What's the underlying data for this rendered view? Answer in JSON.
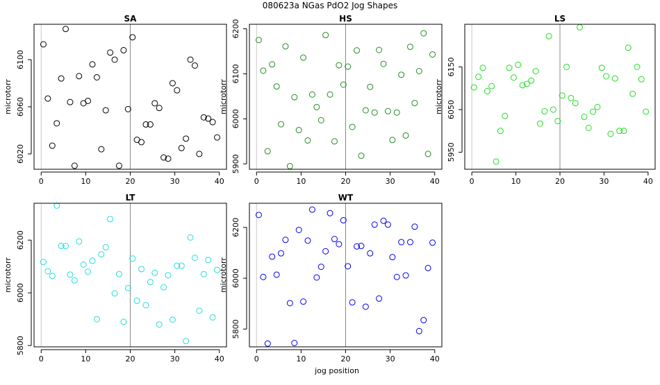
{
  "page": {
    "title": "080623a   NGas PdO2 Jog Shapes",
    "xlabel": "jog position"
  },
  "chart_data": [
    {
      "type": "scatter",
      "title": "SA",
      "ylabel": "microtorr",
      "color": "#000000",
      "vline_x": 20,
      "xlim": [
        -1.6,
        41.6
      ],
      "ylim": [
        6007,
        6130
      ],
      "xticks": [
        0,
        10,
        20,
        30,
        40
      ],
      "yticks": [
        6020,
        6060,
        6100
      ],
      "x": [
        0.5,
        1.5,
        2.5,
        3.5,
        4.5,
        5.5,
        6.5,
        7.5,
        8.5,
        9.5,
        10.5,
        11.5,
        12.5,
        13.5,
        14.5,
        15.5,
        16.5,
        17.5,
        18.5,
        19.5,
        20.5,
        21.5,
        22.5,
        23.5,
        24.5,
        25.5,
        26.5,
        27.5,
        28.5,
        29.5,
        30.5,
        31.5,
        32.5,
        33.5,
        34.5,
        35.5,
        36.5,
        37.5,
        38.5,
        39.5
      ],
      "y": [
        6113,
        6067,
        6027,
        6046,
        6084,
        6126,
        6064,
        6010,
        6086,
        6063,
        6065,
        6096,
        6085,
        6024,
        6057,
        6106,
        6100,
        6010,
        6108,
        6058,
        6119,
        6032,
        6030,
        6045,
        6045,
        6063,
        6059,
        6017,
        6016,
        6080,
        6074,
        6025,
        6033,
        6100,
        6095,
        6020,
        6051,
        6050,
        6047,
        6034
      ]
    },
    {
      "type": "scatter",
      "title": "HS",
      "ylabel": "microtorr",
      "color": "#228B22",
      "vline_x": 20,
      "xlim": [
        -1.6,
        41.6
      ],
      "ylim": [
        5888,
        6210
      ],
      "xticks": [
        0,
        10,
        20,
        30,
        40
      ],
      "yticks": [
        5900,
        6000,
        6100,
        6200
      ],
      "x": [
        0.5,
        1.5,
        2.5,
        3.5,
        4.5,
        5.5,
        6.5,
        7.5,
        8.5,
        9.5,
        10.5,
        11.5,
        12.5,
        13.5,
        14.5,
        15.5,
        16.5,
        17.5,
        18.5,
        19.5,
        20.5,
        21.5,
        22.5,
        23.5,
        24.5,
        25.5,
        26.5,
        27.5,
        28.5,
        29.5,
        30.5,
        31.5,
        32.5,
        33.5,
        34.5,
        35.5,
        36.5,
        37.5,
        38.5,
        39.5
      ],
      "y": [
        6175,
        6107,
        5928,
        6121,
        6072,
        5988,
        6161,
        5895,
        6048,
        5975,
        6136,
        5952,
        6054,
        6026,
        5997,
        6186,
        6054,
        5950,
        6119,
        6076,
        6116,
        5982,
        6152,
        5918,
        6019,
        6071,
        6014,
        6153,
        6122,
        6017,
        5953,
        6014,
        6098,
        5963,
        6160,
        6035,
        6106,
        6190,
        5922,
        6143
      ]
    },
    {
      "type": "scatter",
      "title": "LS",
      "ylabel": "microtorr",
      "color": "#22DD22",
      "vline_x": 20,
      "xlim": [
        -1.6,
        41.6
      ],
      "ylim": [
        5910,
        6250
      ],
      "xticks": [
        0,
        10,
        20,
        30,
        40
      ],
      "yticks": [
        5950,
        6050,
        6150
      ],
      "x": [
        0.5,
        1.5,
        2.5,
        3.5,
        4.5,
        5.5,
        6.5,
        7.5,
        8.5,
        9.5,
        10.5,
        11.5,
        12.5,
        13.5,
        14.5,
        15.5,
        16.5,
        17.5,
        18.5,
        19.5,
        20.5,
        21.5,
        22.5,
        23.5,
        24.5,
        25.5,
        26.5,
        27.5,
        28.5,
        29.5,
        30.5,
        31.5,
        32.5,
        33.5,
        34.5,
        35.5,
        36.5,
        37.5,
        38.5,
        39.5
      ],
      "y": [
        6102,
        6127,
        6148,
        6093,
        6105,
        5928,
        6000,
        6035,
        6148,
        6125,
        6155,
        6107,
        6110,
        6118,
        6140,
        6017,
        6046,
        6222,
        6050,
        6023,
        6083,
        6150,
        6077,
        6065,
        6243,
        6033,
        6007,
        6045,
        6056,
        6148,
        6128,
        5993,
        6123,
        6000,
        6000,
        6195,
        6087,
        6150,
        6121,
        6045
      ]
    },
    {
      "type": "scatter",
      "title": "LT",
      "ylabel": "microtorr",
      "color": "#22DDDD",
      "vline_x": 20,
      "xlim": [
        -1.6,
        41.6
      ],
      "ylim": [
        5795,
        6340
      ],
      "xticks": [
        0,
        10,
        20,
        30,
        40
      ],
      "yticks": [
        5800,
        6000,
        6200
      ],
      "x": [
        0.5,
        1.5,
        2.5,
        3.5,
        4.5,
        5.5,
        6.5,
        7.5,
        8.5,
        9.5,
        10.5,
        11.5,
        12.5,
        13.5,
        14.5,
        15.5,
        16.5,
        17.5,
        18.5,
        19.5,
        20.5,
        21.5,
        22.5,
        23.5,
        24.5,
        25.5,
        26.5,
        27.5,
        28.5,
        29.5,
        30.5,
        31.5,
        32.5,
        33.5,
        34.5,
        35.5,
        36.5,
        37.5,
        38.5,
        39.5
      ],
      "y": [
        6117,
        6082,
        6064,
        6331,
        6178,
        6178,
        6069,
        6047,
        6195,
        6107,
        6080,
        6122,
        5900,
        6146,
        6173,
        6280,
        5998,
        6071,
        5890,
        6018,
        6130,
        5970,
        6090,
        5953,
        6041,
        6076,
        5880,
        6021,
        6067,
        5898,
        6103,
        6103,
        5817,
        6210,
        6133,
        5932,
        6071,
        6125,
        5907,
        6087
      ]
    },
    {
      "type": "scatter",
      "title": "WT",
      "ylabel": "microtorr",
      "color": "#0000EE",
      "vline_x": 20,
      "xlim": [
        -1.6,
        41.6
      ],
      "ylim": [
        5730,
        6295
      ],
      "xticks": [
        0,
        10,
        20,
        30,
        40
      ],
      "yticks": [
        5800,
        6000,
        6200
      ],
      "x": [
        0.5,
        1.5,
        2.5,
        3.5,
        4.5,
        5.5,
        6.5,
        7.5,
        8.5,
        9.5,
        10.5,
        11.5,
        12.5,
        13.5,
        14.5,
        15.5,
        16.5,
        17.5,
        18.5,
        19.5,
        20.5,
        21.5,
        22.5,
        23.5,
        24.5,
        25.5,
        26.5,
        27.5,
        28.5,
        29.5,
        30.5,
        31.5,
        32.5,
        33.5,
        34.5,
        35.5,
        36.5,
        37.5,
        38.5,
        39.5
      ],
      "y": [
        6249,
        6005,
        5743,
        6085,
        6014,
        6098,
        6151,
        5902,
        5745,
        6190,
        5908,
        6148,
        6270,
        6003,
        6045,
        6106,
        6256,
        6154,
        6134,
        6228,
        6047,
        5905,
        6125,
        6127,
        5888,
        6098,
        6211,
        5920,
        6226,
        6211,
        6083,
        6005,
        6142,
        6011,
        6142,
        6203,
        5792,
        5835,
        6040,
        6140
      ]
    }
  ]
}
